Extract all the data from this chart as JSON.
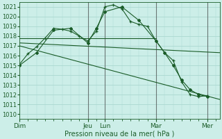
{
  "title": "Pression niveau de la mer( hPa )",
  "bg_color": "#cceee8",
  "grid_color": "#aad8d0",
  "line_color": "#1a5c28",
  "ylim": [
    1009.5,
    1021.5
  ],
  "yticks": [
    1010,
    1011,
    1012,
    1013,
    1014,
    1015,
    1016,
    1017,
    1018,
    1019,
    1020,
    1021
  ],
  "xtick_labels": [
    "Dim",
    "Jeu",
    "Lun",
    "Mar",
    "Mer"
  ],
  "xtick_positions": [
    0,
    8,
    10,
    16,
    22
  ],
  "xlim": [
    0,
    23.5
  ],
  "series": [
    {
      "x": [
        0,
        1,
        2,
        3,
        4,
        5,
        6,
        7,
        8,
        9,
        10,
        11,
        12,
        13,
        14,
        15,
        16,
        17,
        18,
        19,
        20,
        21,
        22
      ],
      "y": [
        1015.1,
        1016.2,
        1016.9,
        1017.8,
        1018.8,
        1018.7,
        1018.5,
        1018.0,
        1017.5,
        1018.5,
        1021.0,
        1021.2,
        1020.8,
        1019.5,
        1019.2,
        1019.0,
        1017.5,
        1016.3,
        1015.5,
        1013.3,
        1012.0,
        1011.8,
        1011.9
      ],
      "marker": "+"
    },
    {
      "x": [
        0,
        2,
        4,
        6,
        8,
        9,
        10,
        12,
        14,
        16,
        17,
        18,
        19,
        20,
        21,
        22
      ],
      "y": [
        1015.0,
        1016.3,
        1018.6,
        1018.8,
        1017.3,
        1018.8,
        1020.5,
        1021.0,
        1019.6,
        1017.5,
        1016.3,
        1015.0,
        1013.5,
        1012.5,
        1012.0,
        1011.8
      ],
      "marker": "D"
    },
    {
      "x": [
        0,
        16
      ],
      "y": [
        1017.8,
        1017.8
      ],
      "marker": null
    },
    {
      "x": [
        0,
        23.5
      ],
      "y": [
        1017.3,
        1016.3
      ],
      "marker": null
    },
    {
      "x": [
        0,
        23.5
      ],
      "y": [
        1017.0,
        1011.5
      ],
      "marker": null
    }
  ],
  "vlines": [
    8,
    10,
    16,
    22
  ],
  "vline_color": "#4a4a4a"
}
